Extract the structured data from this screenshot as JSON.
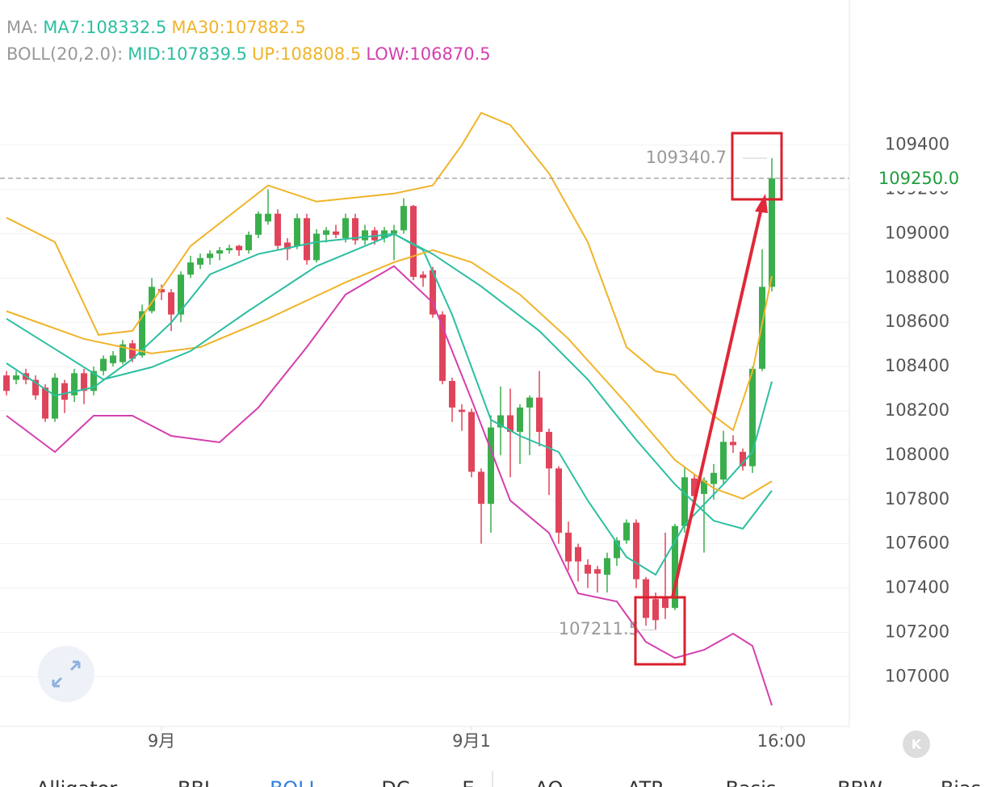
{
  "chart_data": {
    "type": "candlestick",
    "ylim": [
      106775,
      110055
    ],
    "yticks": [
      107000,
      107200,
      107400,
      107600,
      107800,
      108000,
      108200,
      108400,
      108600,
      108800,
      109000,
      109200,
      109400
    ],
    "xlim": [
      -0.67,
      87
    ],
    "xticks": [
      {
        "value": 16,
        "label": "9月"
      },
      {
        "value": 48,
        "label": "9月1"
      },
      {
        "value": 80,
        "label": "16:00"
      }
    ],
    "grid": true,
    "candles": {
      "up_color": "#3aae4c",
      "down_color": "#e0445a",
      "open": [
        108360,
        108340,
        108370,
        108340,
        108305,
        108165,
        108325,
        108270,
        108370,
        108290,
        108380,
        108415,
        108420,
        108505,
        108450,
        108650,
        108750,
        108735,
        108635,
        108815,
        108860,
        108890,
        108910,
        108925,
        108945,
        108925,
        108995,
        109055,
        109090,
        108960,
        108945,
        109070,
        108880,
        108995,
        109010,
        108980,
        109070,
        108970,
        109015,
        108980,
        109000,
        109015,
        109125,
        108815,
        108835,
        108635,
        108335,
        108205,
        108195,
        107925,
        107780,
        108125,
        108180,
        108105,
        108215,
        108260,
        108105,
        107940,
        107650,
        107585,
        107505,
        107485,
        107460,
        107535,
        107615,
        107695,
        107440,
        107350,
        107360,
        107310,
        107680,
        107895,
        107825,
        107870,
        107890,
        108060,
        108015,
        107950,
        108390,
        108760
      ],
      "high": [
        108380,
        108380,
        108390,
        108360,
        108320,
        108370,
        108340,
        108390,
        108390,
        108400,
        108450,
        108470,
        108520,
        108520,
        108680,
        108800,
        108770,
        108750,
        108830,
        108900,
        108910,
        108925,
        108940,
        108950,
        108950,
        109010,
        109100,
        109200,
        109110,
        108980,
        109090,
        109090,
        109020,
        109030,
        109040,
        109090,
        109090,
        109040,
        109030,
        109030,
        109040,
        109160,
        109130,
        108830,
        108850,
        108650,
        108350,
        108230,
        108210,
        107940,
        108180,
        108310,
        108300,
        108230,
        108270,
        108380,
        108120,
        107950,
        107700,
        107600,
        107530,
        107500,
        107560,
        107630,
        107710,
        107710,
        107450,
        107380,
        107650,
        107690,
        107950,
        107910,
        107900,
        107960,
        108110,
        108090,
        108030,
        108400,
        108930,
        109340.7
      ],
      "low": [
        108270,
        108320,
        108320,
        108250,
        108150,
        108150,
        108190,
        108240,
        108230,
        108270,
        108360,
        108400,
        108410,
        108420,
        108440,
        108640,
        108700,
        108560,
        108600,
        108800,
        108840,
        108860,
        108880,
        108910,
        108900,
        108910,
        108980,
        109040,
        108930,
        108880,
        108930,
        108860,
        108870,
        108960,
        108980,
        108960,
        108950,
        108950,
        108950,
        108960,
        108880,
        109000,
        108790,
        108760,
        108620,
        108320,
        108150,
        108110,
        107900,
        107600,
        107650,
        108000,
        107900,
        107960,
        108000,
        108040,
        107820,
        107600,
        107480,
        107430,
        107400,
        107380,
        107380,
        107500,
        107600,
        107400,
        107230,
        107211.5,
        107260,
        107300,
        107650,
        107780,
        107560,
        107800,
        107870,
        108010,
        107930,
        107920,
        108380,
        108740
      ],
      "close": [
        108290,
        108360,
        108340,
        108270,
        108165,
        108350,
        108250,
        108370,
        108290,
        108380,
        108435,
        108450,
        108500,
        108435,
        108650,
        108760,
        108735,
        108635,
        108815,
        108870,
        108890,
        108910,
        108925,
        108935,
        108925,
        108995,
        109090,
        109090,
        108945,
        108930,
        109070,
        108880,
        109000,
        109015,
        108995,
        109070,
        108970,
        109015,
        108970,
        109015,
        109015,
        109125,
        108805,
        108800,
        108635,
        108335,
        108215,
        108195,
        107925,
        107780,
        108125,
        108180,
        108105,
        108215,
        108260,
        108105,
        107940,
        107650,
        107520,
        107520,
        107465,
        107465,
        107535,
        107615,
        107695,
        107440,
        107265,
        107255,
        107310,
        107680,
        107900,
        107815,
        107885,
        107920,
        108060,
        108045,
        107950,
        108390,
        108760,
        109250
      ]
    },
    "overlays": [
      {
        "label": "MA:",
        "series": [
          {
            "name": "MA7:",
            "color": "#2bbfa0",
            "x": [
              0,
              5,
              9,
              13,
              17,
              21,
              26,
              32,
              40,
              43,
              46,
              50,
              53,
              57,
              60,
              64,
              67,
              70,
              74,
              77,
              79
            ],
            "values": [
              108415,
              108269,
              108306,
              108434,
              108598,
              108816,
              108908,
              108962,
              108999,
              108926,
              108634,
              108160,
              108087,
              108014,
              107795,
              107540,
              107460,
              107686,
              107868,
              108014,
              108332.5
            ]
          },
          {
            "name": "MA30:",
            "color": "#f0b429",
            "x": [
              0,
              8,
              15,
              20,
              27,
              35,
              40,
              44,
              48,
              53,
              58,
              64,
              69,
              73,
              76,
              79
            ],
            "values": [
              108650,
              108525,
              108459,
              108488,
              108616,
              108780,
              108871,
              108926,
              108871,
              108725,
              108525,
              108233,
              107978,
              107850,
              107803,
              107882.5
            ]
          }
        ]
      },
      {
        "label": "BOLL(20,2.0):",
        "series": [
          {
            "name": "MID:",
            "color": "#2bbfa0",
            "x": [
              0,
              6,
              10,
              15,
              19,
              25,
              32,
              40,
              44,
              49,
              55,
              60,
              65,
              69,
              73,
              76,
              79
            ],
            "values": [
              108616,
              108452,
              108342,
              108397,
              108470,
              108652,
              108853,
              108999,
              108908,
              108762,
              108561,
              108342,
              108069,
              107868,
              107704,
              107668,
              107839.5
            ]
          },
          {
            "name": "UP:",
            "color": "#f0b429",
            "x": [
              0,
              5,
              9.5,
              13,
              19,
              27,
              32,
              40,
              44,
              47,
              49,
              52,
              56,
              60,
              64,
              67,
              69,
              73,
              75,
              77,
              79
            ],
            "values": [
              109072,
              108962,
              108543,
              108561,
              108944,
              109218,
              109145,
              109181,
              109218,
              109400,
              109546,
              109491,
              109272,
              108962,
              108488,
              108379,
              108361,
              108178,
              108113,
              108379,
              108808.5
            ]
          },
          {
            "name": "LOW:",
            "color": "#d43fae",
            "x": [
              0,
              5,
              9,
              13,
              17,
              22,
              26,
              31,
              35,
              40,
              44,
              48,
              52,
              56,
              59,
              63,
              66,
              69,
              72,
              75,
              77,
              79
            ],
            "values": [
              108178,
              108014,
              108178,
              108178,
              108087,
              108058,
              108215,
              108488,
              108725,
              108853,
              108689,
              108251,
              107795,
              107649,
              107376,
              107339,
              107157,
              107084,
              107121,
              107194,
              107139,
              106870.5
            ]
          }
        ]
      }
    ],
    "last_price": {
      "value": 109250,
      "label": "109250.0",
      "color": "#1f9e3c"
    },
    "tabs": [
      "Alligator",
      "BBI",
      "BOLL",
      "DC",
      "E",
      "AO",
      "ATR",
      "Basis",
      "BBW",
      "Bias"
    ],
    "active_tab": "BOLL",
    "corner_button": "K"
  }
}
